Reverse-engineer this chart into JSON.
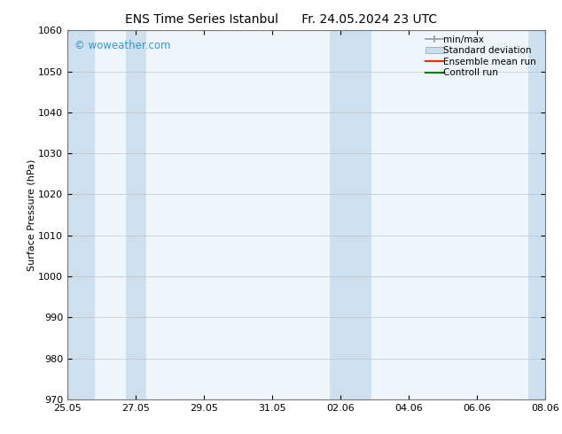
{
  "title_left": "ENS Time Series Istanbul",
  "title_right": "Fr. 24.05.2024 23 UTC",
  "ylabel": "Surface Pressure (hPa)",
  "xlim_start": 0,
  "xlim_end": 14,
  "ylim": [
    970,
    1060
  ],
  "yticks": [
    970,
    980,
    990,
    1000,
    1010,
    1020,
    1030,
    1040,
    1050,
    1060
  ],
  "xtick_labels": [
    "25.05",
    "27.05",
    "29.05",
    "31.05",
    "02.06",
    "04.06",
    "06.06",
    "08.06"
  ],
  "xtick_positions": [
    0,
    2,
    4,
    6,
    8,
    10,
    12,
    14
  ],
  "watermark": "© woweather.com",
  "watermark_color": "#3399cc",
  "bg_color": "#ffffff",
  "plot_bg_color": "#eef5fb",
  "shaded_bands": [
    {
      "x_start": 0.0,
      "x_end": 0.8
    },
    {
      "x_start": 1.7,
      "x_end": 2.3
    },
    {
      "x_start": 7.7,
      "x_end": 8.9
    },
    {
      "x_start": 13.5,
      "x_end": 14.0
    }
  ],
  "shaded_color": "#cce0f0",
  "legend_items": [
    {
      "label": "min/max",
      "color": "#999999",
      "type": "errorbar"
    },
    {
      "label": "Standard deviation",
      "color": "#c8dff0",
      "type": "rect"
    },
    {
      "label": "Ensemble mean run",
      "color": "#ff2200",
      "type": "line"
    },
    {
      "label": "Controll run",
      "color": "#007700",
      "type": "line"
    }
  ],
  "title_fontsize": 10,
  "axis_label_fontsize": 8,
  "tick_fontsize": 8,
  "legend_fontsize": 7.5,
  "spine_color": "#777777"
}
